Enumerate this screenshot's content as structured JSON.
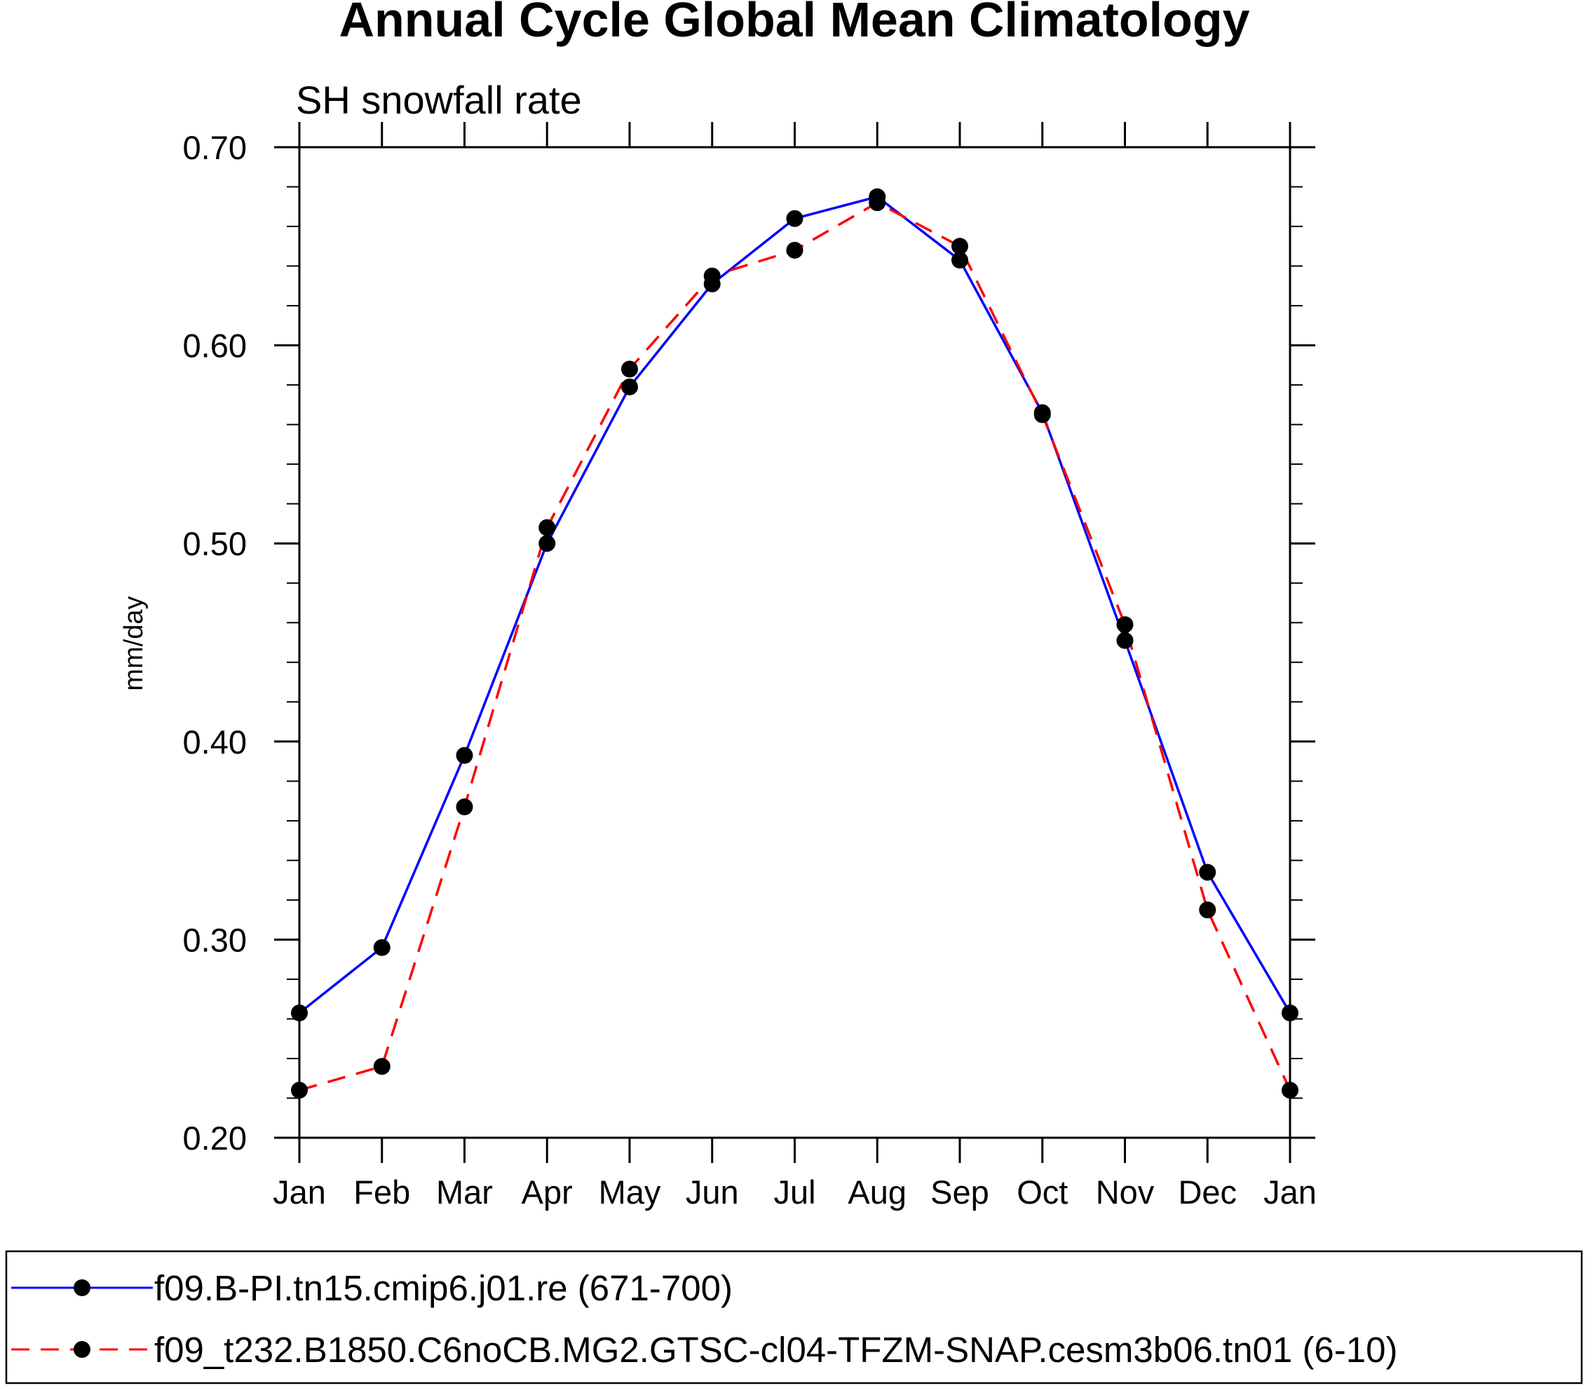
{
  "chart_data": {
    "type": "line",
    "title": "Annual Cycle Global Mean Climatology",
    "subtitle": "SH snowfall rate",
    "xlabel": "",
    "ylabel": "mm/day",
    "categories": [
      "Jan",
      "Feb",
      "Mar",
      "Apr",
      "May",
      "Jun",
      "Jul",
      "Aug",
      "Sep",
      "Oct",
      "Nov",
      "Dec",
      "Jan"
    ],
    "ylim": [
      0.2,
      0.7
    ],
    "yticks": [
      0.2,
      0.3,
      0.4,
      0.5,
      0.6,
      0.7
    ],
    "ytick_labels": [
      "0.20",
      "0.30",
      "0.40",
      "0.50",
      "0.60",
      "0.70"
    ],
    "y_minor_step": 0.02,
    "grid": false,
    "series": [
      {
        "name": "f09.B-PI.tn15.cmip6.j01.re (671-700)",
        "color": "#0000ff",
        "dash": "solid",
        "values": [
          0.263,
          0.296,
          0.393,
          0.5,
          0.579,
          0.631,
          0.664,
          0.675,
          0.643,
          0.566,
          0.451,
          0.334,
          0.263
        ]
      },
      {
        "name": "f09_t232.B1850.C6noCB.MG2.GTSC-cl04-TFZM-SNAP.cesm3b06.tn01 (6-10)",
        "color": "#ff0000",
        "dash": "dashed",
        "values": [
          0.224,
          0.236,
          0.367,
          0.508,
          0.588,
          0.635,
          0.648,
          0.672,
          0.65,
          0.565,
          0.459,
          0.315,
          0.224
        ]
      }
    ],
    "marker_color": "#000000",
    "legend_position": "bottom"
  }
}
